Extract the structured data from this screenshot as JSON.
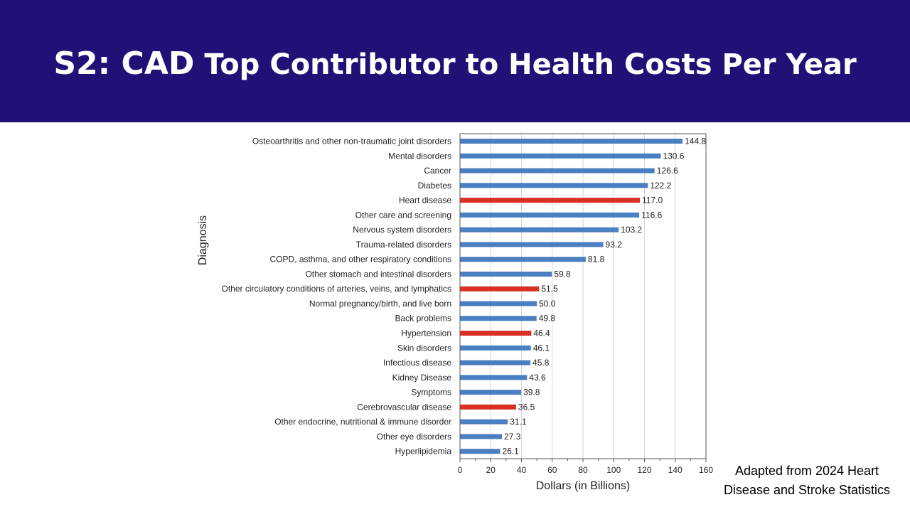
{
  "slide": {
    "title_prefix": "S2: ",
    "title_cad": "CAD",
    "title_rest": " Top Contributor to Health Costs Per Year"
  },
  "source_note": {
    "line1": "Adapted from 2024 Heart",
    "line2": "Disease and Stroke Statistics"
  },
  "colors": {
    "banner": "#211076",
    "bar_default": "#4a7fc1",
    "bar_highlight": "#d93025"
  },
  "chart_data": {
    "type": "bar",
    "orientation": "horizontal",
    "categories": [
      "Osteoarthritis and other non-traumatic joint disorders",
      "Mental disorders",
      "Cancer",
      "Diabetes",
      "Heart disease",
      "Other care and screening",
      "Nervous system disorders",
      "Trauma-related disorders",
      "COPD, asthma, and other respiratory conditions",
      "Other stomach and intestinal disorders",
      "Other circulatory conditions of arteries, veins, and lymphatics",
      "Normal pregnancy/birth, and live born",
      "Back problems",
      "Hypertension",
      "Skin disorders",
      "Infectious disease",
      "Kidney Disease",
      "Symptoms",
      "Cerebrovascular disease",
      "Other endocrine, nutritional & immune disorder",
      "Other eye disorders",
      "Hyperlipidemia"
    ],
    "values": [
      144.8,
      130.6,
      126.6,
      122.2,
      117.0,
      116.6,
      103.2,
      93.2,
      81.8,
      59.8,
      51.5,
      50.0,
      49.8,
      46.4,
      46.1,
      45.8,
      43.6,
      39.8,
      36.5,
      31.1,
      27.3,
      26.1
    ],
    "value_labels": [
      "144.8",
      "130.6",
      "126.6",
      "122.2",
      "117.0",
      "116.6",
      "103.2",
      "93.2",
      "81.8",
      "59.8",
      "51.5",
      "50.0",
      "49.8",
      "46.4",
      "46.1",
      "45.8",
      "43.6",
      "39.8",
      "36.5",
      "31.1",
      "27.3",
      "26.1"
    ],
    "highlighted": [
      "Heart disease",
      "Other circulatory conditions of arteries, veins, and lymphatics",
      "Hypertension",
      "Cerebrovascular disease"
    ],
    "xlabel": "Dollars (in Billions)",
    "ylabel": "Diagnosis",
    "xlim": [
      0,
      160
    ],
    "xticks": [
      0,
      20,
      40,
      60,
      80,
      100,
      120,
      140,
      160
    ],
    "grid": "vertical",
    "legend": "none"
  }
}
